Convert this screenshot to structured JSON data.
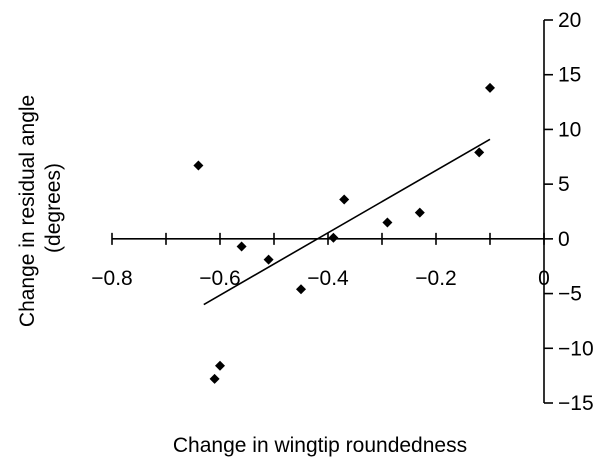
{
  "chart_data": {
    "type": "scatter",
    "title": "",
    "xlabel": "Change in wingtip roundedness",
    "ylabel_lines": [
      "Change in residual angle",
      "(degrees)"
    ],
    "xlim": [
      -0.8,
      0
    ],
    "ylim": [
      -15,
      20
    ],
    "x_ticks": [
      -0.8,
      -0.7,
      -0.6,
      -0.5,
      -0.4,
      -0.3,
      -0.2,
      -0.1,
      0
    ],
    "x_tick_labels": [
      "−0.8",
      "−0.6",
      "−0.4",
      "−0.2",
      "0"
    ],
    "x_tick_label_values": [
      -0.8,
      -0.6,
      -0.4,
      -0.2,
      0
    ],
    "y_ticks": [
      -15,
      -10,
      -5,
      0,
      5,
      10,
      15,
      20
    ],
    "y_tick_labels": [
      "−15",
      "−10",
      "−5",
      "0",
      "5",
      "10",
      "15",
      "20"
    ],
    "grid": false,
    "marker": "diamond",
    "color": "#000000",
    "points": [
      {
        "x": -0.64,
        "y": 6.7
      },
      {
        "x": -0.61,
        "y": -12.8
      },
      {
        "x": -0.6,
        "y": -11.6
      },
      {
        "x": -0.56,
        "y": -0.7
      },
      {
        "x": -0.51,
        "y": -1.9
      },
      {
        "x": -0.45,
        "y": -4.6
      },
      {
        "x": -0.39,
        "y": 0.1
      },
      {
        "x": -0.37,
        "y": 3.6
      },
      {
        "x": -0.29,
        "y": 1.5
      },
      {
        "x": -0.23,
        "y": 2.4
      },
      {
        "x": -0.12,
        "y": 7.9
      },
      {
        "x": -0.1,
        "y": 13.8
      }
    ],
    "trendline": {
      "x": [
        -0.63,
        -0.1
      ],
      "y": [
        -6.0,
        9.1
      ]
    }
  }
}
